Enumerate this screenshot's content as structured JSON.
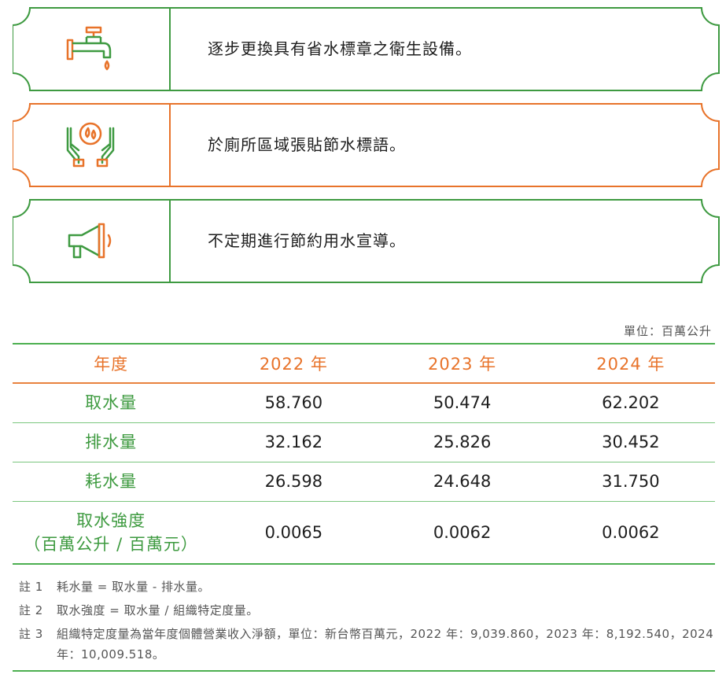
{
  "cards": [
    {
      "text": "逐步更換具有省水標章之衛生設備。",
      "icon": "faucet-icon",
      "color": "#3e9a41"
    },
    {
      "text": "於廁所區域張貼節水標語。",
      "icon": "hands-water-drop-icon",
      "color": "#e8732a"
    },
    {
      "text": "不定期進行節約用水宣導。",
      "icon": "megaphone-icon",
      "color": "#3e9a41"
    }
  ],
  "unit": "單位：百萬公升",
  "table": {
    "header": [
      "年度",
      "2022 年",
      "2023 年",
      "2024 年"
    ],
    "rows": [
      {
        "label": "取水量",
        "values": [
          "58.760",
          "50.474",
          "62.202"
        ]
      },
      {
        "label": "排水量",
        "values": [
          "32.162",
          "25.826",
          "30.452"
        ]
      },
      {
        "label": "耗水量",
        "values": [
          "26.598",
          "24.648",
          "31.750"
        ]
      },
      {
        "label_line1": "取水強度",
        "label_line2": "（百萬公升 / 百萬元）",
        "values": [
          "0.0065",
          "0.0062",
          "0.0062"
        ]
      }
    ]
  },
  "notes": [
    {
      "tag": "註 1",
      "text": "耗水量 = 取水量 - 排水量。"
    },
    {
      "tag": "註 2",
      "text": "取水強度 = 取水量 / 組織特定度量。"
    },
    {
      "tag": "註 3",
      "text": "組織特定度量為當年度個體營業收入淨額，單位：新台幣百萬元，2022 年：9,039.860，2023 年：8,192.540，2024 年：10,009.518。"
    }
  ],
  "colors": {
    "green": "#3e9a41",
    "orange": "#e8732a"
  }
}
